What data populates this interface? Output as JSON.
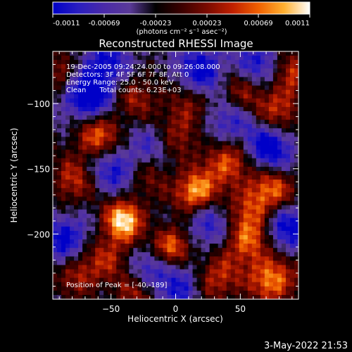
{
  "colorbar": {
    "ticks": [
      "-0.0011",
      "-0.00069",
      "-0.00023",
      "0.00023",
      "0.00069",
      "0.0011"
    ],
    "units_label": "(photons cm⁻² s⁻¹ asec⁻²)",
    "stops": [
      "#0000c8",
      "#2a1ec0",
      "#4a2aa8",
      "#5a3a98",
      "#000000",
      "#3a0000",
      "#7a0a00",
      "#c02000",
      "#f06000",
      "#ffb030",
      "#ffffff"
    ]
  },
  "chart_data": {
    "type": "heatmap",
    "title": "Reconstructed RHESSI Image",
    "xlabel": "Heliocentric X (arcsec)",
    "ylabel": "Heliocentric Y (arcsec)",
    "xlim": [
      -95,
      95
    ],
    "ylim": [
      -250,
      -60
    ],
    "xticks": [
      -50,
      0,
      50
    ],
    "yticks": [
      -100,
      -150,
      -200
    ],
    "value_range": [
      -0.0011,
      0.0011
    ],
    "annotations": [
      "19-Dec-2005 09:24:24.000 to 09:26:08.000",
      "Detectors: 3F 4F 5F 6F 7F 8F, Att 0",
      "Energy Range: 25.0 - 50.0 keV",
      "Clean      Total counts: 6.23E+03"
    ],
    "peak_text": "Position of Peak = [-40,-189]",
    "hotspots": [
      {
        "x": -40,
        "y": -189,
        "v": 0.0011
      },
      {
        "x": 15,
        "y": -168,
        "v": 0.001
      },
      {
        "x": -3,
        "y": -210,
        "v": 0.00095
      },
      {
        "x": -60,
        "y": -125,
        "v": 0.0008
      },
      {
        "x": 40,
        "y": -145,
        "v": 0.0008
      },
      {
        "x": 75,
        "y": -165,
        "v": 0.0007
      },
      {
        "x": 55,
        "y": -205,
        "v": 0.0008
      },
      {
        "x": 75,
        "y": -235,
        "v": 0.0009
      },
      {
        "x": -75,
        "y": -230,
        "v": 0.0006
      },
      {
        "x": -80,
        "y": -160,
        "v": 0.0006
      },
      {
        "x": 30,
        "y": -235,
        "v": 0.0007
      },
      {
        "x": 0,
        "y": -125,
        "v": 0.0006
      },
      {
        "x": -30,
        "y": -95,
        "v": 0.0005
      },
      {
        "x": 80,
        "y": -105,
        "v": 0.0006
      },
      {
        "x": 50,
        "y": -90,
        "v": 0.0005
      },
      {
        "x": -50,
        "y": -215,
        "v": 0.0005
      },
      {
        "x": -20,
        "y": -155,
        "v": 0.0004
      },
      {
        "x": 90,
        "y": -75,
        "v": 0.0006
      },
      {
        "x": -90,
        "y": -75,
        "v": 0.0005
      },
      {
        "x": 10,
        "y": -100,
        "v": 0.0004
      },
      {
        "x": 60,
        "y": -180,
        "v": 0.0005
      },
      {
        "x": -30,
        "y": -245,
        "v": 0.0005
      }
    ],
    "coldspots": [
      {
        "x": -68,
        "y": -95,
        "v": -0.0009
      },
      {
        "x": 20,
        "y": -75,
        "v": -0.0007
      },
      {
        "x": 72,
        "y": -135,
        "v": -0.0008
      },
      {
        "x": -48,
        "y": -150,
        "v": -0.0006
      },
      {
        "x": -85,
        "y": -205,
        "v": -0.0007
      },
      {
        "x": 5,
        "y": -240,
        "v": -0.0006
      },
      {
        "x": 40,
        "y": -115,
        "v": -0.0005
      },
      {
        "x": -15,
        "y": -130,
        "v": -0.0005
      },
      {
        "x": 85,
        "y": -195,
        "v": -0.0007
      },
      {
        "x": -55,
        "y": -70,
        "v": -0.0006
      },
      {
        "x": 25,
        "y": -195,
        "v": -0.0005
      },
      {
        "x": -20,
        "y": -225,
        "v": -0.0005
      },
      {
        "x": 65,
        "y": -70,
        "v": -0.0006
      }
    ]
  },
  "footer": {
    "timestamp": "3-May-2022 21:53"
  }
}
